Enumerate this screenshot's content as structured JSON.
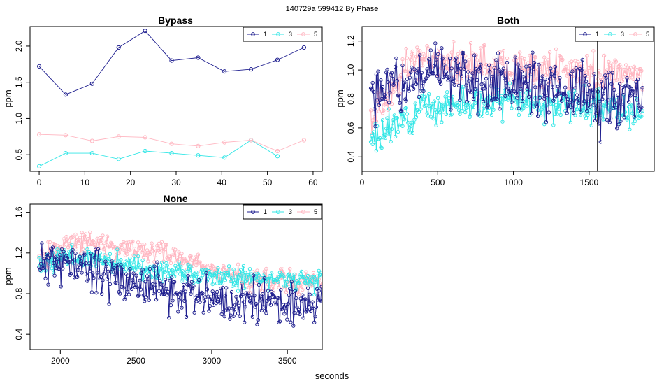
{
  "figure": {
    "suptitle": "140729a   599412   By Phase",
    "xlabel": "seconds"
  },
  "colors": {
    "1": "#1f1f8f",
    "3": "#33e6e6",
    "5": "#ffb6c1",
    "axis": "#000000"
  },
  "chart_data": [
    {
      "id": "bypass",
      "type": "line",
      "title": "Bypass",
      "xlabel": "",
      "ylabel": "ppm",
      "xlim": [
        -2,
        62
      ],
      "ylim": [
        0.27,
        2.27
      ],
      "xticks": [
        0,
        10,
        20,
        30,
        40,
        50,
        60
      ],
      "yticks": [
        0.5,
        1.0,
        1.5,
        2.0
      ],
      "ytick_labels": [
        "0.5",
        "1.0",
        "1.5",
        "2.0"
      ],
      "legend": {
        "position": "top-right",
        "entries": [
          "1",
          "3",
          "5"
        ]
      },
      "series": [
        {
          "name": "1",
          "x": [
            0,
            5.8,
            11.6,
            17.4,
            23.2,
            29,
            34.8,
            40.6,
            46.4,
            52.2,
            58
          ],
          "values": [
            1.72,
            1.33,
            1.48,
            1.98,
            2.21,
            1.8,
            1.84,
            1.65,
            1.68,
            1.81,
            1.98
          ]
        },
        {
          "name": "3",
          "x": [
            0,
            5.8,
            11.6,
            17.4,
            23.2,
            29,
            34.8,
            40.6,
            46.4,
            52.2
          ],
          "values": [
            0.34,
            0.52,
            0.52,
            0.44,
            0.55,
            0.52,
            0.49,
            0.46,
            0.7,
            0.48
          ]
        },
        {
          "name": "5",
          "x": [
            0,
            5.8,
            11.6,
            17.4,
            23.2,
            29,
            34.8,
            40.6,
            46.4,
            52.2,
            58
          ],
          "values": [
            0.78,
            0.77,
            0.69,
            0.75,
            0.74,
            0.65,
            0.62,
            0.67,
            0.7,
            0.55,
            0.7
          ]
        }
      ]
    },
    {
      "id": "both",
      "type": "line",
      "title": "Both",
      "xlabel": "",
      "ylabel": "ppm",
      "xlim": [
        0,
        1930
      ],
      "ylim": [
        0.3,
        1.3
      ],
      "xticks": [
        0,
        500,
        1000,
        1500
      ],
      "yticks": [
        0.4,
        0.6,
        0.8,
        1.0,
        1.2
      ],
      "ytick_labels": [
        "0.4",
        "0.6",
        "0.8",
        "1.0",
        "1.2"
      ],
      "vline_x": 1555,
      "legend": {
        "position": "top-right",
        "entries": [
          "1",
          "3",
          "5"
        ]
      },
      "series_generated": {
        "x_range": [
          58,
          1855
        ],
        "step": 6,
        "note": "dense noisy series",
        "series": [
          {
            "name": "5",
            "profile": [
              [
                58,
                0.62
              ],
              [
                300,
                1.05
              ],
              [
                1000,
                1.02
              ],
              [
                1855,
                0.95
              ]
            ],
            "noise": 0.13,
            "seed": 5
          },
          {
            "name": "3",
            "profile": [
              [
                58,
                0.5
              ],
              [
                400,
                0.75
              ],
              [
                1000,
                0.78
              ],
              [
                1855,
                0.72
              ]
            ],
            "noise": 0.1,
            "seed": 3
          },
          {
            "name": "1",
            "profile": [
              [
                58,
                0.8
              ],
              [
                500,
                1.0
              ],
              [
                1000,
                0.88
              ],
              [
                1855,
                0.76
              ]
            ],
            "noise": 0.2,
            "seed": 1
          }
        ]
      }
    },
    {
      "id": "none",
      "type": "line",
      "title": "None",
      "xlabel": "seconds",
      "ylabel": "ppm",
      "xlim": [
        1800,
        3730
      ],
      "ylim": [
        0.25,
        1.68
      ],
      "xticks": [
        2000,
        2500,
        3000,
        3500
      ],
      "yticks": [
        0.4,
        0.8,
        1.2,
        1.6
      ],
      "ytick_labels": [
        "0.4",
        "0.8",
        "1.2",
        "1.6"
      ],
      "legend": {
        "position": "top-right",
        "entries": [
          "1",
          "3",
          "5"
        ]
      },
      "series_generated": {
        "x_range": [
          1860,
          3730
        ],
        "step": 6,
        "note": "dense noisy series",
        "series": [
          {
            "name": "5",
            "profile": [
              [
                1860,
                1.15
              ],
              [
                2100,
                1.32
              ],
              [
                2700,
                1.2
              ],
              [
                3200,
                0.95
              ],
              [
                3730,
                0.9
              ]
            ],
            "noise": 0.1,
            "seed": 15
          },
          {
            "name": "3",
            "profile": [
              [
                1860,
                1.1
              ],
              [
                2100,
                1.18
              ],
              [
                2700,
                1.0
              ],
              [
                3200,
                0.95
              ],
              [
                3730,
                0.92
              ]
            ],
            "noise": 0.1,
            "seed": 13
          },
          {
            "name": "1",
            "profile": [
              [
                1860,
                1.1
              ],
              [
                2100,
                1.1
              ],
              [
                2600,
                0.85
              ],
              [
                3100,
                0.72
              ],
              [
                3730,
                0.7
              ]
            ],
            "noise": 0.2,
            "seed": 11
          }
        ]
      }
    }
  ]
}
